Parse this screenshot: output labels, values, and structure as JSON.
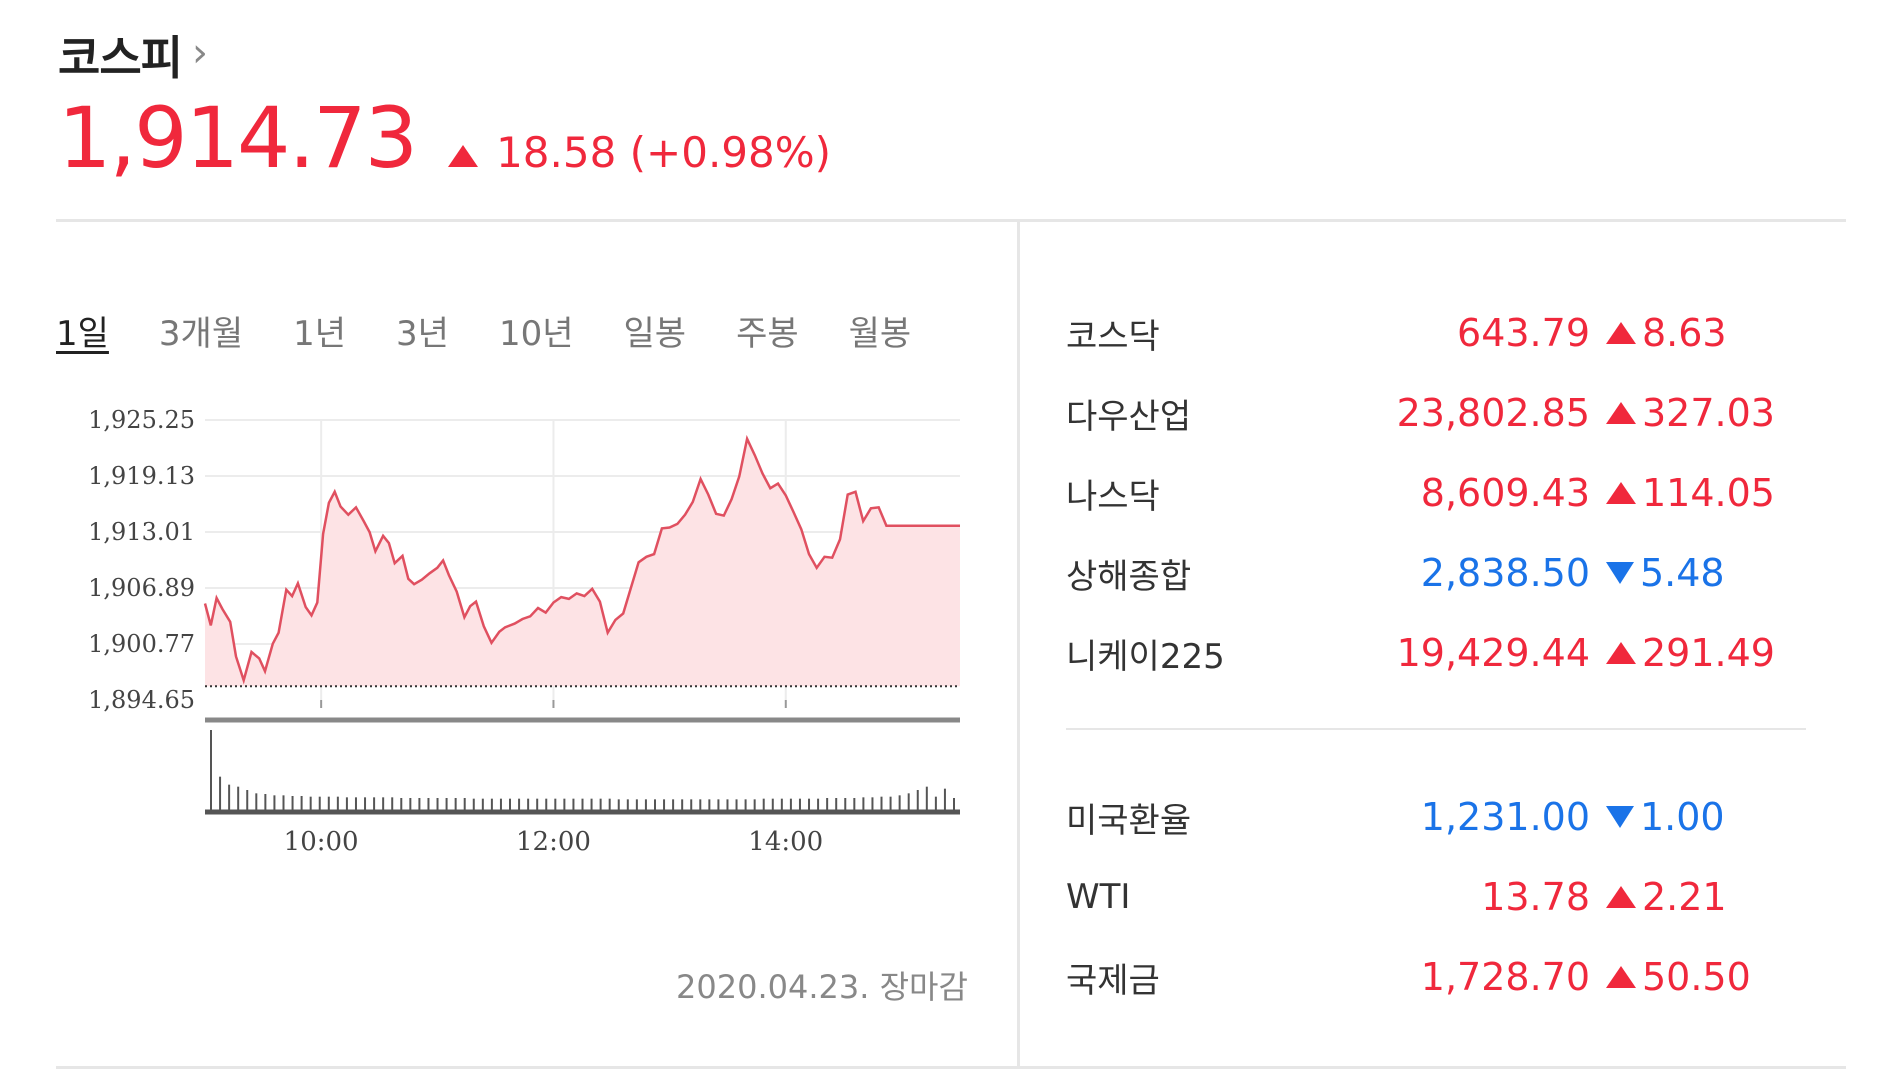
{
  "index": {
    "name": "코스피",
    "chevron": "›",
    "value": "1,914.73",
    "direction": "up",
    "change": "18.58 (+0.98%)"
  },
  "tabs": [
    {
      "label": "1일",
      "active": true
    },
    {
      "label": "3개월",
      "active": false
    },
    {
      "label": "1년",
      "active": false
    },
    {
      "label": "3년",
      "active": false
    },
    {
      "label": "10년",
      "active": false
    },
    {
      "label": "일봉",
      "active": false
    },
    {
      "label": "주봉",
      "active": false
    },
    {
      "label": "월봉",
      "active": false
    }
  ],
  "chart_data": {
    "type": "area",
    "y_ticks": [
      "1,925.25",
      "1,919.13",
      "1,913.01",
      "1,906.89",
      "1,900.77",
      "1,894.65"
    ],
    "ylim": [
      1894.65,
      1925.25
    ],
    "x_ticks": [
      "10:00",
      "12:00",
      "14:00"
    ],
    "xlim": [
      "09:00",
      "15:30"
    ],
    "prev_close": 1896.15,
    "series": [
      {
        "points": [
          [
            "09:00",
            1905.2
          ],
          [
            "09:03",
            1902.8
          ],
          [
            "09:06",
            1905.8
          ],
          [
            "09:09",
            1904.6
          ],
          [
            "09:13",
            1903.2
          ],
          [
            "09:16",
            1899.4
          ],
          [
            "09:20",
            1896.8
          ],
          [
            "09:24",
            1899.9
          ],
          [
            "09:28",
            1899.2
          ],
          [
            "09:31",
            1897.8
          ],
          [
            "09:35",
            1900.8
          ],
          [
            "09:38",
            1902.0
          ],
          [
            "09:42",
            1906.7
          ],
          [
            "09:45",
            1906.0
          ],
          [
            "09:48",
            1907.4
          ],
          [
            "09:52",
            1904.8
          ],
          [
            "09:55",
            1903.9
          ],
          [
            "09:58",
            1905.3
          ],
          [
            "10:01",
            1912.8
          ],
          [
            "10:04",
            1916.2
          ],
          [
            "10:07",
            1917.4
          ],
          [
            "10:10",
            1915.8
          ],
          [
            "10:14",
            1914.9
          ],
          [
            "10:18",
            1915.7
          ],
          [
            "10:22",
            1914.2
          ],
          [
            "10:25",
            1913.0
          ],
          [
            "10:28",
            1910.9
          ],
          [
            "10:32",
            1912.6
          ],
          [
            "10:35",
            1911.8
          ],
          [
            "10:38",
            1909.6
          ],
          [
            "10:42",
            1910.4
          ],
          [
            "10:45",
            1907.9
          ],
          [
            "10:48",
            1907.3
          ],
          [
            "10:52",
            1907.8
          ],
          [
            "10:56",
            1908.5
          ],
          [
            "11:00",
            1909.1
          ],
          [
            "11:03",
            1909.9
          ],
          [
            "11:06",
            1908.3
          ],
          [
            "11:10",
            1906.5
          ],
          [
            "11:14",
            1903.7
          ],
          [
            "11:17",
            1904.9
          ],
          [
            "11:20",
            1905.4
          ],
          [
            "11:24",
            1902.7
          ],
          [
            "11:28",
            1900.9
          ],
          [
            "11:32",
            1902.1
          ],
          [
            "11:35",
            1902.6
          ],
          [
            "11:40",
            1903.0
          ],
          [
            "11:44",
            1903.5
          ],
          [
            "11:48",
            1903.8
          ],
          [
            "11:52",
            1904.7
          ],
          [
            "11:56",
            1904.2
          ],
          [
            "12:00",
            1905.3
          ],
          [
            "12:04",
            1905.9
          ],
          [
            "12:08",
            1905.7
          ],
          [
            "12:12",
            1906.3
          ],
          [
            "12:16",
            1906.0
          ],
          [
            "12:20",
            1906.8
          ],
          [
            "12:24",
            1905.4
          ],
          [
            "12:28",
            1902.0
          ],
          [
            "12:32",
            1903.4
          ],
          [
            "12:36",
            1904.1
          ],
          [
            "12:40",
            1906.9
          ],
          [
            "12:44",
            1909.7
          ],
          [
            "12:48",
            1910.3
          ],
          [
            "12:52",
            1910.6
          ],
          [
            "12:56",
            1913.4
          ],
          [
            "13:00",
            1913.5
          ],
          [
            "13:04",
            1913.9
          ],
          [
            "13:08",
            1914.9
          ],
          [
            "13:12",
            1916.3
          ],
          [
            "13:16",
            1918.8
          ],
          [
            "13:20",
            1917.1
          ],
          [
            "13:24",
            1915.0
          ],
          [
            "13:28",
            1914.8
          ],
          [
            "13:32",
            1916.6
          ],
          [
            "13:36",
            1919.1
          ],
          [
            "13:40",
            1923.2
          ],
          [
            "13:44",
            1921.4
          ],
          [
            "13:48",
            1919.4
          ],
          [
            "13:52",
            1917.8
          ],
          [
            "13:56",
            1918.3
          ],
          [
            "14:00",
            1917.0
          ],
          [
            "14:04",
            1915.2
          ],
          [
            "14:08",
            1913.3
          ],
          [
            "14:12",
            1910.6
          ],
          [
            "14:16",
            1909.1
          ],
          [
            "14:20",
            1910.3
          ],
          [
            "14:24",
            1910.2
          ],
          [
            "14:28",
            1912.2
          ],
          [
            "14:32",
            1917.1
          ],
          [
            "14:36",
            1917.4
          ],
          [
            "14:40",
            1914.2
          ],
          [
            "14:44",
            1915.6
          ],
          [
            "14:48",
            1915.7
          ],
          [
            "14:52",
            1913.7
          ],
          [
            "15:00",
            1913.7
          ],
          [
            "15:30",
            1913.7
          ]
        ]
      }
    ],
    "volume": [
      120,
      50,
      38,
      35,
      30,
      25,
      24,
      22,
      22,
      21,
      21,
      20,
      20,
      20,
      20,
      19,
      19,
      19,
      19,
      19,
      19,
      18,
      18,
      18,
      18,
      18,
      18,
      18,
      18,
      17,
      17,
      17,
      17,
      17,
      17,
      17,
      17,
      17,
      17,
      17,
      17,
      17,
      17,
      17,
      17,
      16,
      16,
      16,
      16,
      16,
      16,
      16,
      16,
      16,
      16,
      16,
      16,
      16,
      16,
      16,
      16,
      17,
      17,
      17,
      17,
      17,
      17,
      17,
      18,
      18,
      18,
      18,
      19,
      19,
      20,
      20,
      22,
      25,
      30,
      35,
      20,
      32,
      18
    ]
  },
  "timestamp": "2020.04.23. 장마감",
  "markets_group1": [
    {
      "name": "코스닥",
      "value": "643.79",
      "direction": "up",
      "change": "8.63"
    },
    {
      "name": "다우산업",
      "value": "23,802.85",
      "direction": "up",
      "change": "327.03"
    },
    {
      "name": "나스닥",
      "value": "8,609.43",
      "direction": "up",
      "change": "114.05"
    },
    {
      "name": "상해종합",
      "value": "2,838.50",
      "direction": "down",
      "change": "5.48"
    },
    {
      "name": "니케이225",
      "value": "19,429.44",
      "direction": "up",
      "change": "291.49"
    }
  ],
  "markets_group2": [
    {
      "name": "미국환율",
      "value": "1,231.00",
      "direction": "down",
      "change": "1.00"
    },
    {
      "name": "WTI",
      "value": "13.78",
      "direction": "up",
      "change": "2.21"
    },
    {
      "name": "국제금",
      "value": "1,728.70",
      "direction": "up",
      "change": "50.50"
    }
  ],
  "colors": {
    "up": "#f0283c",
    "down": "#1a73e8",
    "fill": "#fde3e5",
    "grid": "#ececec"
  }
}
